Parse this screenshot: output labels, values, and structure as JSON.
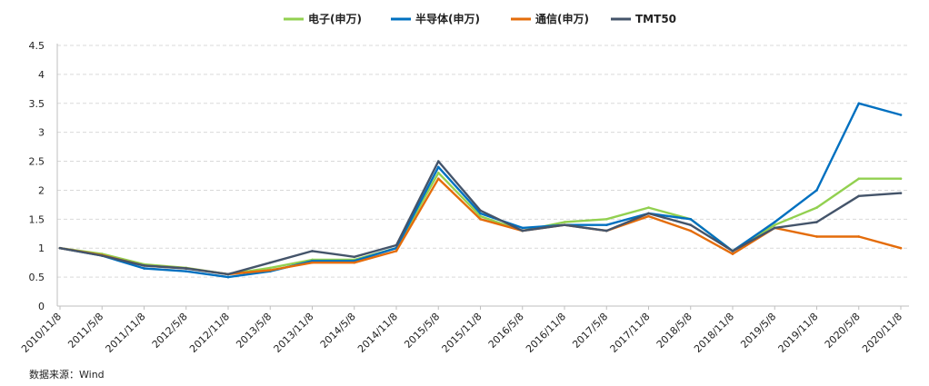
{
  "source_note": "数据来源：Wind",
  "chart_data": {
    "type": "line",
    "legend_position": "top-center",
    "grid": "horizontal-dashed",
    "ylim": [
      0,
      4.5
    ],
    "yticks": [
      "0",
      "0.5",
      "1",
      "1.5",
      "2",
      "2.5",
      "3",
      "3.5",
      "4",
      "4.5"
    ],
    "categories": [
      "2010/11/8",
      "2011/5/8",
      "2011/11/8",
      "2012/5/8",
      "2012/11/8",
      "2013/5/8",
      "2013/11/8",
      "2014/5/8",
      "2014/11/8",
      "2015/5/8",
      "2015/11/8",
      "2016/5/8",
      "2016/11/8",
      "2017/5/8",
      "2017/11/8",
      "2018/5/8",
      "2018/11/8",
      "2019/5/8",
      "2019/11/8",
      "2020/5/8",
      "2020/11/8"
    ],
    "series": [
      {
        "name": "电子(申万)",
        "color": "#92D050",
        "values": [
          1.0,
          0.9,
          0.72,
          0.66,
          0.55,
          0.66,
          0.8,
          0.8,
          1.0,
          2.3,
          1.55,
          1.3,
          1.45,
          1.5,
          1.7,
          1.5,
          0.95,
          1.4,
          1.7,
          2.2,
          2.2
        ]
      },
      {
        "name": "半导体(申万)",
        "color": "#0070C0",
        "values": [
          1.0,
          0.87,
          0.65,
          0.6,
          0.5,
          0.6,
          0.78,
          0.78,
          1.0,
          2.4,
          1.6,
          1.35,
          1.4,
          1.4,
          1.6,
          1.5,
          0.95,
          1.45,
          2.0,
          3.5,
          3.3
        ]
      },
      {
        "name": "通信(申万)",
        "color": "#E46C0A",
        "values": [
          1.0,
          0.88,
          0.7,
          0.65,
          0.55,
          0.62,
          0.75,
          0.75,
          0.95,
          2.2,
          1.5,
          1.3,
          1.4,
          1.3,
          1.55,
          1.3,
          0.9,
          1.35,
          1.2,
          1.2,
          1.0
        ]
      },
      {
        "name": "TMT50",
        "color": "#44546A",
        "values": [
          1.0,
          0.87,
          0.7,
          0.65,
          0.55,
          0.75,
          0.95,
          0.85,
          1.05,
          2.5,
          1.65,
          1.3,
          1.4,
          1.3,
          1.6,
          1.4,
          0.95,
          1.35,
          1.45,
          1.9,
          1.95
        ]
      }
    ]
  }
}
